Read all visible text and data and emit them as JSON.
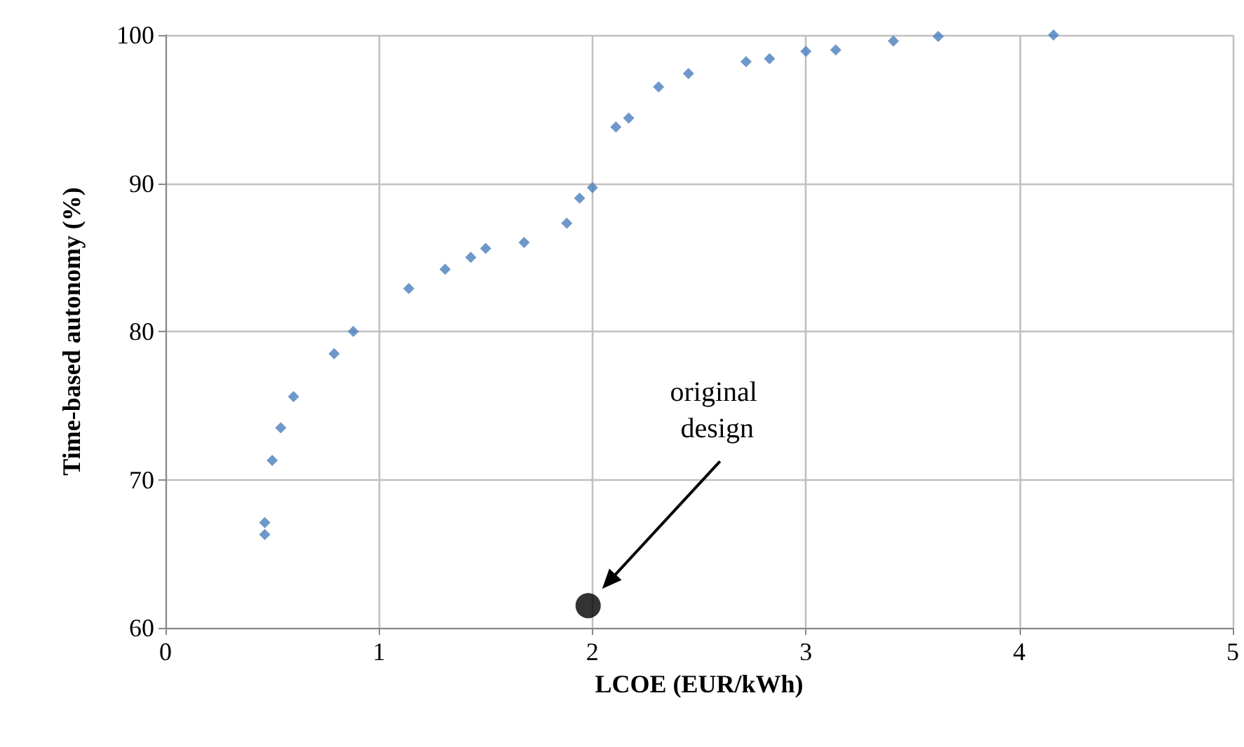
{
  "chart_data": {
    "type": "scatter",
    "xlabel": "LCOE (EUR/kWh)",
    "ylabel": "Time-based autonomy (%)",
    "xlim": [
      0,
      5
    ],
    "xticks": [
      0,
      1,
      2,
      3,
      4,
      5
    ],
    "ylim": [
      60,
      100
    ],
    "yticks": [
      60,
      70,
      80,
      90,
      100
    ],
    "grid": true,
    "marker": "diamond",
    "series": [
      {
        "color": "#4a7ebb",
        "x": [
          0.465,
          0.465,
          0.5,
          0.54,
          0.6,
          0.79,
          0.88,
          1.14,
          1.31,
          1.43,
          1.5,
          1.68,
          1.88,
          1.94,
          2.0,
          2.11,
          2.17,
          2.31,
          2.45,
          2.72,
          2.83,
          3.0,
          3.14,
          3.41,
          3.62,
          4.16
        ],
        "values": [
          66.3,
          67.1,
          71.3,
          73.5,
          75.6,
          78.5,
          80.0,
          82.9,
          84.2,
          85.0,
          85.6,
          86.0,
          87.3,
          89.0,
          89.7,
          93.8,
          94.4,
          96.5,
          97.4,
          98.2,
          98.4,
          98.9,
          99.0,
          99.6,
          99.9,
          100.0
        ]
      },
      {
        "color": "#000000",
        "marker": "circle",
        "x": [
          1.98
        ],
        "values": [
          61.5
        ]
      }
    ],
    "annotations": [
      "original design"
    ]
  }
}
